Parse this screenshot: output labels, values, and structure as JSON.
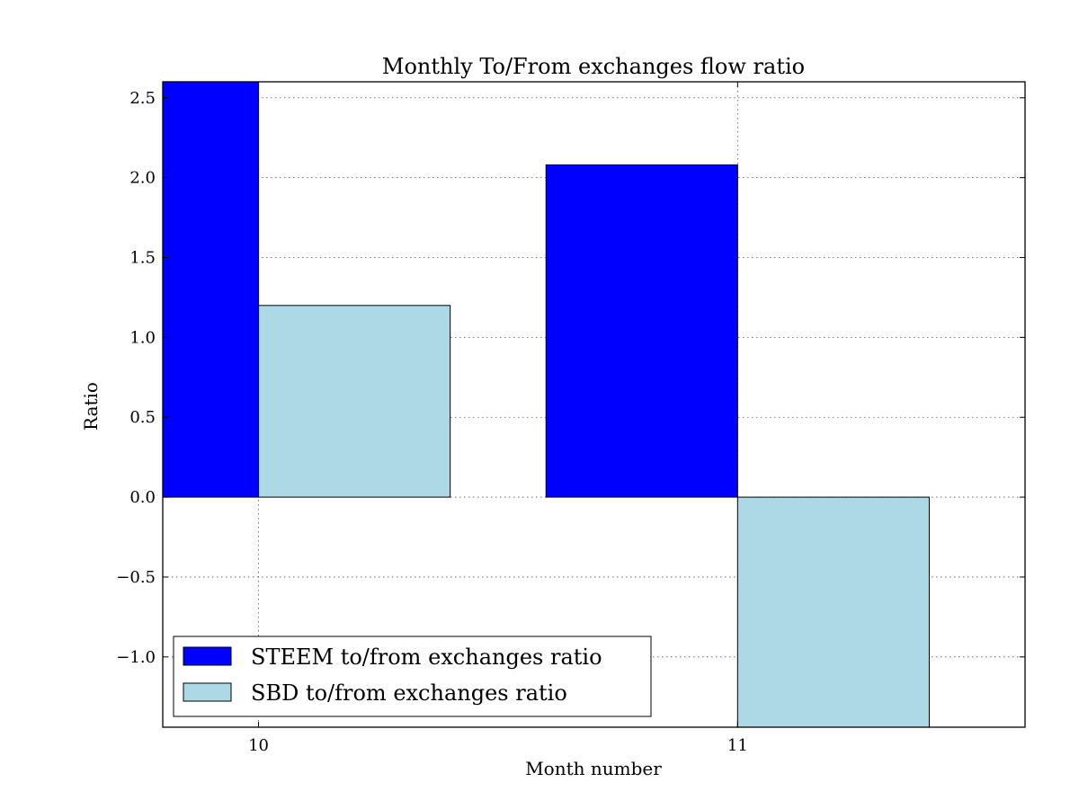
{
  "chart_data": {
    "type": "bar",
    "title": "Monthly To/From exchanges flow ratio",
    "xlabel": "Month number",
    "ylabel": "Ratio",
    "categories": [
      "10",
      "11"
    ],
    "x": [
      10,
      11
    ],
    "series": [
      {
        "name": "STEEM to/from exchanges ratio",
        "color": "#0000ff",
        "values": [
          2.6,
          2.08
        ]
      },
      {
        "name": "SBD to/from exchanges ratio",
        "color": "#add8e6",
        "values": [
          1.2,
          -1.45
        ]
      }
    ],
    "xlim": [
      9.8,
      11.6
    ],
    "ylim": [
      -1.44,
      2.6
    ],
    "yticks": [
      {
        "value": 2.5,
        "label": "2.5"
      },
      {
        "value": 2.0,
        "label": "2.0"
      },
      {
        "value": 1.5,
        "label": "1.5"
      },
      {
        "value": 1.0,
        "label": "1.0"
      },
      {
        "value": 0.5,
        "label": "0.5"
      },
      {
        "value": 0.0,
        "label": "0.0"
      },
      {
        "value": -0.5,
        "label": "−0.5"
      },
      {
        "value": -1.0,
        "label": "−1.0"
      }
    ],
    "xticks": [
      {
        "value": 10,
        "label": "10"
      },
      {
        "value": 11,
        "label": "11"
      }
    ],
    "bar_width": 0.4,
    "grid": true,
    "legend_position": "lower-left"
  }
}
